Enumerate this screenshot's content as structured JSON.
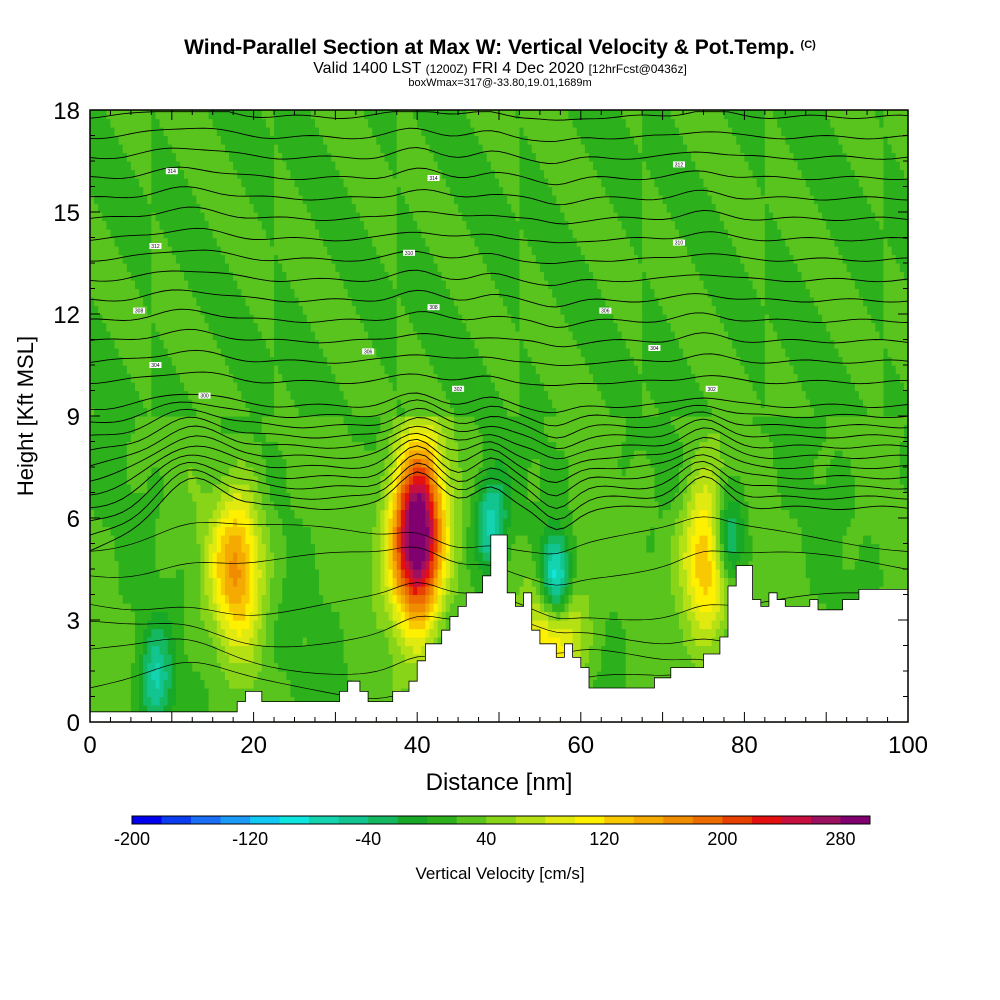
{
  "header": {
    "title": "Wind-Parallel Section at Max W: Vertical Velocity & Pot.Temp.",
    "copyright": "(C)",
    "valid_prefix": "Valid 1400 LST",
    "valid_zulu": "(1200Z)",
    "valid_date": "FRI 4 Dec 2020",
    "forecast": "[12hrFcst@0436z]",
    "box_info": "boxWmax=317@-33.80,19.01,1689m"
  },
  "chart_data": {
    "type": "heatmap",
    "xlabel": "Distance [nm]",
    "ylabel": "Height [Kft MSL]",
    "xlim": [
      0,
      100
    ],
    "ylim": [
      0,
      18
    ],
    "x_ticks": [
      0,
      20,
      40,
      60,
      80,
      100
    ],
    "y_ticks": [
      0,
      3,
      6,
      9,
      12,
      15,
      18
    ],
    "field": "Vertical Velocity",
    "units": "cm/s",
    "colorbar": {
      "label": "Vertical Velocity [cm/s]",
      "ticks": [
        "-200",
        "-120",
        "-40",
        "40",
        "120",
        "200",
        "280"
      ],
      "tick_values": [
        -200,
        -120,
        -40,
        40,
        120,
        200,
        280
      ],
      "range": [
        -200,
        300
      ],
      "levels": [
        -200,
        -180,
        -160,
        -140,
        -120,
        -100,
        -80,
        -60,
        -40,
        -20,
        0,
        20,
        40,
        60,
        80,
        100,
        120,
        140,
        160,
        180,
        200,
        220,
        240,
        260,
        280
      ],
      "colors": [
        "#0000ee",
        "#0a3cf0",
        "#1a6ef5",
        "#1b9af8",
        "#12c8f5",
        "#10e6e0",
        "#14d4b0",
        "#12c490",
        "#14b860",
        "#18a828",
        "#2cb11c",
        "#5ac41e",
        "#88d418",
        "#b4e014",
        "#e0ea10",
        "#fff000",
        "#f8c800",
        "#f4aa00",
        "#f08c00",
        "#ec6c00",
        "#e84000",
        "#e41010",
        "#c81040",
        "#9c1060",
        "#800070"
      ]
    },
    "updraft_cores": [
      {
        "x": 18,
        "z": 4.6,
        "w": 140
      },
      {
        "x": 40,
        "z": 5.5,
        "w": 317
      },
      {
        "x": 57,
        "z": 3.0,
        "w": 140
      },
      {
        "x": 75.5,
        "z": 4.8,
        "w": 140
      }
    ],
    "downdraft_cores": [
      {
        "x": 57,
        "z": 4.2,
        "w": -200
      },
      {
        "x": 49,
        "z": 5.8,
        "w": -100
      },
      {
        "x": 78,
        "z": 5.4,
        "w": -120
      },
      {
        "x": 8,
        "z": 1.2,
        "w": -80
      }
    ],
    "terrain": {
      "x": [
        0,
        17,
        17.5,
        18,
        18.5,
        19,
        20,
        21,
        28,
        30,
        30.5,
        31,
        31.5,
        32,
        33,
        33.5,
        34,
        35,
        36,
        37,
        38,
        39,
        40,
        40.5,
        41,
        42,
        43,
        44,
        45,
        46,
        47,
        48,
        49,
        50,
        51,
        52,
        53,
        54,
        55,
        56,
        57,
        58,
        59,
        60,
        61,
        62,
        63,
        64,
        65,
        66,
        67,
        68,
        69,
        70,
        71,
        72,
        73,
        74,
        75,
        76,
        77,
        78,
        79,
        80,
        81,
        82,
        83,
        84,
        85,
        86,
        87,
        88,
        89,
        90,
        91,
        92,
        93,
        94,
        95,
        96,
        97,
        98,
        99,
        100
      ],
      "z": [
        0.3,
        0.3,
        0.3,
        0.6,
        0.6,
        0.9,
        0.9,
        0.6,
        0.6,
        0.6,
        0.9,
        0.9,
        1.2,
        1.2,
        0.9,
        0.9,
        0.6,
        0.6,
        0.6,
        0.9,
        0.9,
        1.2,
        1.8,
        1.8,
        2.3,
        2.3,
        2.7,
        3.1,
        3.4,
        3.8,
        3.8,
        4.3,
        5.5,
        5.5,
        3.8,
        3.4,
        3.8,
        2.7,
        2.3,
        2.3,
        1.9,
        2.3,
        1.9,
        1.6,
        1.0,
        1.0,
        1.0,
        1.0,
        1.0,
        1.0,
        1.0,
        1.0,
        1.3,
        1.3,
        1.6,
        1.6,
        1.6,
        1.6,
        2.0,
        2.0,
        2.5,
        4.0,
        4.6,
        4.6,
        3.6,
        3.4,
        3.8,
        3.6,
        3.4,
        3.4,
        3.4,
        3.6,
        3.3,
        3.3,
        3.3,
        3.6,
        3.6,
        3.9,
        3.9,
        3.9,
        3.9,
        3.9,
        3.9,
        3.9
      ]
    },
    "pot_temp_contour_labels": [
      "314",
      "314",
      "312",
      "312",
      "310",
      "310",
      "308",
      "308",
      "306",
      "306",
      "304",
      "304",
      "302",
      "302",
      "300"
    ]
  }
}
